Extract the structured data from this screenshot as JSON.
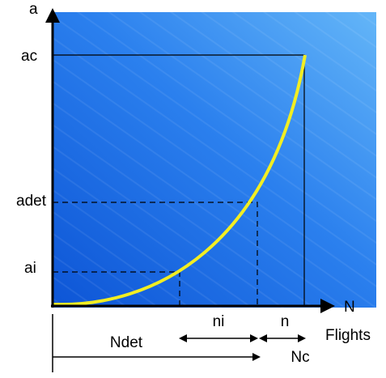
{
  "axes": {
    "y_label": "a",
    "x_label": "N",
    "x_unit": "Flights"
  },
  "y_levels": [
    "ac",
    "adet",
    "ai"
  ],
  "intervals": {
    "ni": "ni",
    "n": "n",
    "ndet": "Ndet",
    "nc": "Nc"
  }
}
